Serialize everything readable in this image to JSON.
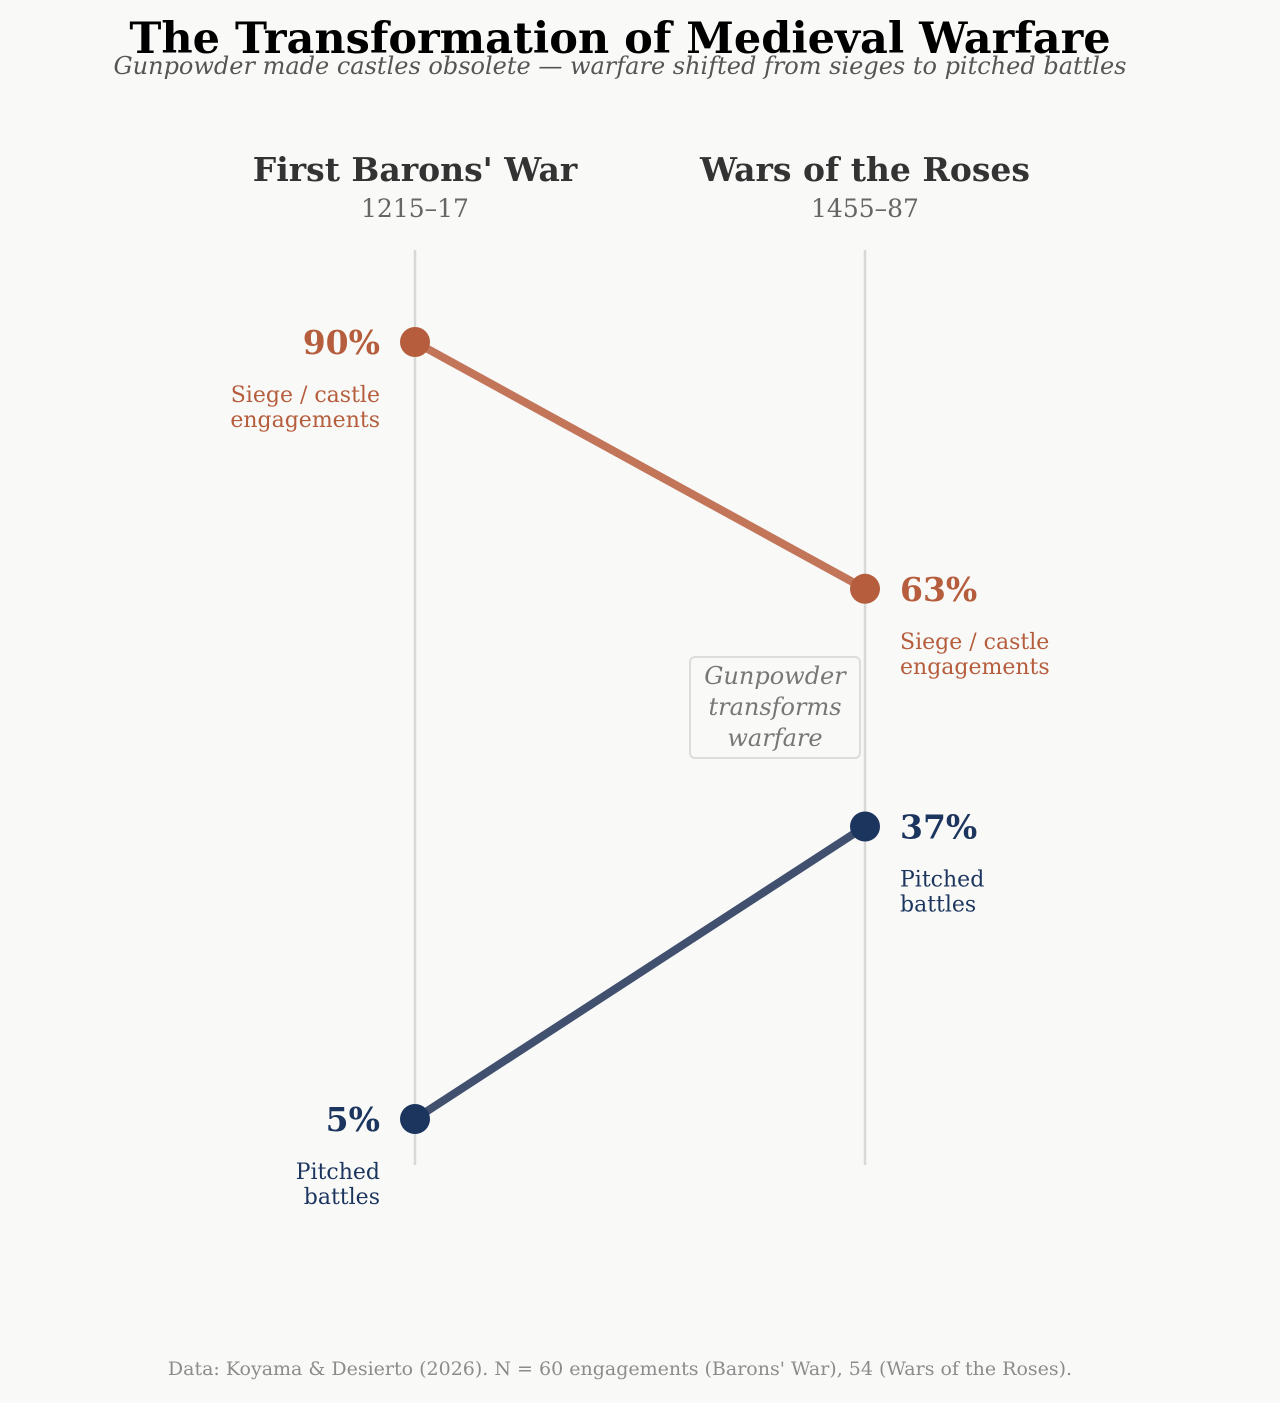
{
  "title": "The Transformation of Medieval Warfare",
  "subtitle": "Gunpowder made castles obsolete — warfare shifted from sieges to pitched battles",
  "footnote": "Data: Koyama & Desierto (2026). N = 60 engagements (Barons' War), 54 (Wars of the Roses).",
  "annotation": [
    "Gunpowder",
    "transforms",
    "warfare"
  ],
  "chart_data": {
    "type": "slope",
    "title": "The Transformation of Medieval Warfare",
    "periods": [
      {
        "name": "First Barons' War",
        "years": "1215–17"
      },
      {
        "name": "Wars of the Roses",
        "years": "1455–87"
      }
    ],
    "unit": "%",
    "ylim": [
      5,
      90
    ],
    "series": [
      {
        "name": "Siege / castle engagements",
        "label_lines": [
          "Siege / castle",
          "engagements"
        ],
        "values": [
          90,
          63
        ],
        "value_labels": [
          "90%",
          "63%"
        ],
        "color": "#b55d3c",
        "line_color": "#c27559"
      },
      {
        "name": "Pitched battles",
        "label_lines": [
          "Pitched",
          "battles"
        ],
        "values": [
          5,
          37
        ],
        "value_labels": [
          "5%",
          "37%"
        ],
        "color": "#1c355e",
        "line_color": "#41506e"
      }
    ]
  }
}
